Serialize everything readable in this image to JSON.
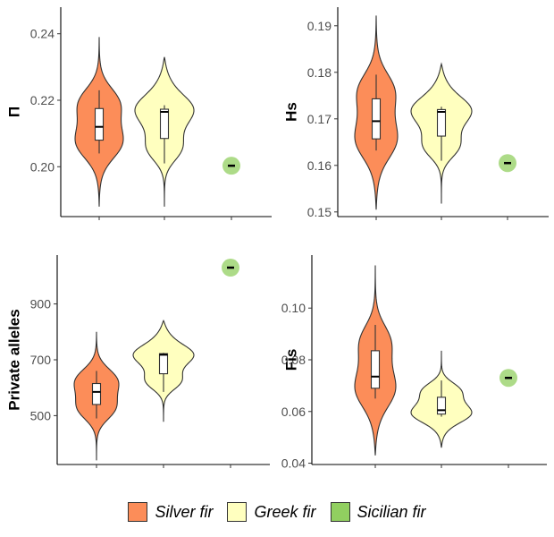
{
  "chart_data": [
    {
      "type": "violin",
      "ylabel": "Π",
      "ylim": [
        0.185,
        0.248
      ],
      "yticks": [
        0.2,
        0.22,
        0.24
      ],
      "tick_labels": [
        "0.20",
        "0.22",
        "0.24"
      ],
      "categories": [
        "Silver fir",
        "Greek fir",
        "Sicilian fir"
      ],
      "series": [
        {
          "name": "Silver fir",
          "min": 0.188,
          "max": 0.239,
          "box": {
            "whisker_low": 0.204,
            "q1": 0.208,
            "median": 0.212,
            "q3": 0.2175,
            "whisker_high": 0.223
          }
        },
        {
          "name": "Greek fir",
          "min": 0.188,
          "max": 0.233,
          "box": {
            "whisker_low": 0.201,
            "q1": 0.2085,
            "median": 0.2165,
            "q3": 0.2173,
            "whisker_high": 0.2185
          }
        },
        {
          "name": "Sicilian fir",
          "point": 0.2003
        }
      ]
    },
    {
      "type": "violin",
      "ylabel": "Hs",
      "ylim": [
        0.149,
        0.194
      ],
      "yticks": [
        0.15,
        0.16,
        0.17,
        0.18,
        0.19
      ],
      "tick_labels": [
        "0.15",
        "0.16",
        "0.17",
        "0.18",
        "0.19"
      ],
      "categories": [
        "Silver fir",
        "Greek fir",
        "Sicilian fir"
      ],
      "series": [
        {
          "name": "Silver fir",
          "min": 0.1505,
          "max": 0.1922,
          "box": {
            "whisker_low": 0.1632,
            "q1": 0.1657,
            "median": 0.1695,
            "q3": 0.1743,
            "whisker_high": 0.1795
          }
        },
        {
          "name": "Greek fir",
          "min": 0.1518,
          "max": 0.1818,
          "box": {
            "whisker_low": 0.161,
            "q1": 0.1663,
            "median": 0.1715,
            "q3": 0.172,
            "whisker_high": 0.1726
          }
        },
        {
          "name": "Sicilian fir",
          "point": 0.1605
        }
      ]
    },
    {
      "type": "violin",
      "ylabel": "Private alleles",
      "ylim": [
        325,
        1075
      ],
      "yticks": [
        500,
        700,
        900
      ],
      "tick_labels": [
        "500",
        "700",
        "900"
      ],
      "categories": [
        "Silver fir",
        "Greek fir",
        "Sicilian fir"
      ],
      "series": [
        {
          "name": "Silver fir",
          "min": 340,
          "max": 800,
          "box": {
            "whisker_low": 490,
            "q1": 540,
            "median": 585,
            "q3": 615,
            "whisker_high": 660
          }
        },
        {
          "name": "Greek fir",
          "min": 478,
          "max": 840,
          "box": {
            "whisker_low": 585,
            "q1": 650,
            "median": 718,
            "q3": 722,
            "whisker_high": 725
          }
        },
        {
          "name": "Sicilian fir",
          "point": 1030
        }
      ]
    },
    {
      "type": "violin",
      "ylabel": "Fis",
      "ylim": [
        0.0395,
        0.1205
      ],
      "yticks": [
        0.04,
        0.06,
        0.08,
        0.1
      ],
      "tick_labels": [
        "0.04",
        "0.06",
        "0.08",
        "0.10"
      ],
      "categories": [
        "Silver fir",
        "Greek fir",
        "Sicilian fir"
      ],
      "series": [
        {
          "name": "Silver fir",
          "min": 0.043,
          "max": 0.1165,
          "box": {
            "whisker_low": 0.065,
            "q1": 0.069,
            "median": 0.0735,
            "q3": 0.0835,
            "whisker_high": 0.0935
          }
        },
        {
          "name": "Greek fir",
          "min": 0.046,
          "max": 0.0835,
          "box": {
            "whisker_low": 0.058,
            "q1": 0.059,
            "median": 0.0605,
            "q3": 0.0655,
            "whisker_high": 0.072
          }
        },
        {
          "name": "Sicilian fir",
          "point": 0.073
        }
      ]
    }
  ],
  "legend": {
    "items": [
      {
        "label": "Silver fir",
        "color": "#fc8d59"
      },
      {
        "label": "Greek fir",
        "color": "#ffffbf"
      },
      {
        "label": "Sicilian fir",
        "color": "#91cf60"
      }
    ]
  }
}
